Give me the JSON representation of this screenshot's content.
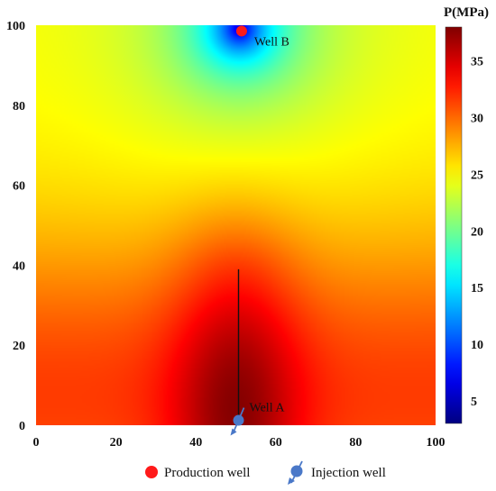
{
  "chart_data": {
    "type": "heatmap",
    "title": "",
    "xlabel": "",
    "ylabel": "",
    "xlim": [
      0,
      100
    ],
    "ylim": [
      0,
      100
    ],
    "x_ticks": [
      "0",
      "20",
      "40",
      "60",
      "80",
      "100"
    ],
    "y_ticks": [
      "0",
      "20",
      "40",
      "60",
      "80",
      "100"
    ],
    "colorbar": {
      "title": "P(MPa)",
      "range": [
        3,
        38
      ],
      "ticks": [
        "5",
        "10",
        "15",
        "20",
        "25",
        "30",
        "35"
      ],
      "colormap": "jet"
    },
    "field": {
      "description_values_MPa": {
        "max_near_fracture_base": 37.5,
        "min_at_well_b": 3.5,
        "at_corners": 25
      }
    },
    "wells": [
      {
        "name": "Well A",
        "type": "injection",
        "x": 50,
        "y": 1
      },
      {
        "name": "Well B",
        "type": "production",
        "x": 51,
        "y": 99
      }
    ],
    "fracture": {
      "x": 50,
      "y_start": 0,
      "y_end": 39
    },
    "legend": {
      "placement": "bottom",
      "items": [
        {
          "label": "Production well",
          "marker": "production",
          "color": "#ff1a1a"
        },
        {
          "label": "Injection well",
          "marker": "injection",
          "color": "#4a78c8"
        }
      ]
    }
  }
}
